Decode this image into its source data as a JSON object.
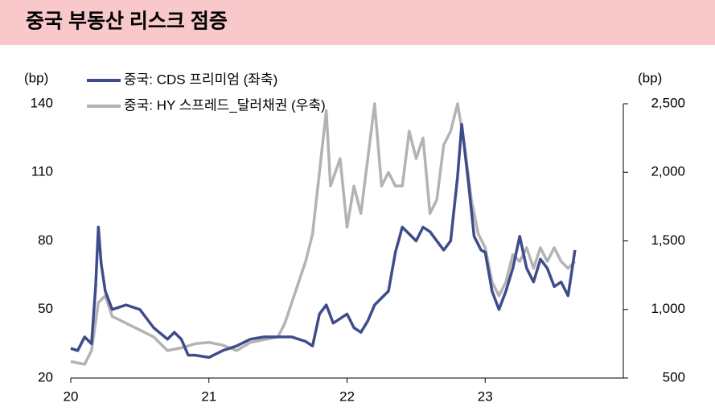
{
  "chart_data": {
    "type": "line",
    "title": "중국 부동산 리스크 점증",
    "y_label": "(bp)",
    "y2_label": "(bp)",
    "xlim": [
      20,
      24
    ],
    "xticks": [
      {
        "value": 20,
        "label": "20"
      },
      {
        "value": 21,
        "label": "21"
      },
      {
        "value": 22,
        "label": "22"
      },
      {
        "value": 23,
        "label": "23"
      }
    ],
    "ylim": [
      20,
      140
    ],
    "yticks": [
      20,
      50,
      80,
      110,
      140
    ],
    "y2lim": [
      500,
      2500
    ],
    "y2ticks": [
      500,
      {
        "value": 1000,
        "label": "1,000"
      },
      {
        "value": 1500,
        "label": "1,500"
      },
      {
        "value": 2000,
        "label": "2,000"
      },
      {
        "value": 2500,
        "label": "2,500"
      }
    ],
    "legend": "top-left",
    "series": [
      {
        "name": "중국: CDS 프리미엄 (좌축)",
        "color": "#3f4c8c",
        "x": [
          20.0,
          20.05,
          20.1,
          20.15,
          20.18,
          20.2,
          20.22,
          20.25,
          20.3,
          20.4,
          20.5,
          20.6,
          20.7,
          20.75,
          20.8,
          20.85,
          20.9,
          21.0,
          21.1,
          21.2,
          21.3,
          21.4,
          21.5,
          21.6,
          21.7,
          21.75,
          21.8,
          21.85,
          21.9,
          22.0,
          22.05,
          22.1,
          22.15,
          22.2,
          22.3,
          22.35,
          22.4,
          22.5,
          22.55,
          22.6,
          22.65,
          22.7,
          22.75,
          22.8,
          22.83,
          22.88,
          22.92,
          22.97,
          23.0,
          23.05,
          23.1,
          23.15,
          23.2,
          23.25,
          23.3,
          23.35,
          23.4,
          23.45,
          23.5,
          23.55,
          23.6,
          23.65
        ],
        "values": [
          33,
          32,
          38,
          35,
          60,
          86,
          70,
          58,
          50,
          52,
          50,
          42,
          37,
          40,
          37,
          30,
          30,
          29,
          32,
          34,
          37,
          38,
          38,
          38,
          36,
          34,
          48,
          52,
          44,
          48,
          42,
          40,
          45,
          52,
          58,
          75,
          86,
          80,
          86,
          84,
          80,
          76,
          80,
          108,
          131,
          105,
          82,
          76,
          75,
          58,
          50,
          58,
          68,
          82,
          68,
          62,
          72,
          68,
          60,
          62,
          56,
          76
        ]
      },
      {
        "name": "중국: HY 스프레드_달러채권  (우축)",
        "color": "#b3b3b3",
        "axis": "y2",
        "x": [
          20.0,
          20.1,
          20.15,
          20.2,
          20.25,
          20.3,
          20.4,
          20.5,
          20.6,
          20.7,
          20.8,
          20.9,
          21.0,
          21.1,
          21.2,
          21.3,
          21.4,
          21.5,
          21.55,
          21.6,
          21.65,
          21.7,
          21.75,
          21.8,
          21.85,
          21.88,
          21.95,
          22.0,
          22.05,
          22.1,
          22.15,
          22.2,
          22.25,
          22.3,
          22.35,
          22.4,
          22.45,
          22.5,
          22.55,
          22.6,
          22.65,
          22.7,
          22.75,
          22.8,
          22.85,
          22.9,
          22.95,
          23.0,
          23.05,
          23.1,
          23.15,
          23.2,
          23.25,
          23.3,
          23.35,
          23.4,
          23.45,
          23.5,
          23.55,
          23.6,
          23.65
        ],
        "values": [
          620,
          600,
          700,
          1050,
          1100,
          950,
          900,
          850,
          800,
          700,
          720,
          750,
          760,
          740,
          700,
          760,
          780,
          800,
          900,
          1050,
          1200,
          1350,
          1550,
          2000,
          2450,
          1900,
          2100,
          1600,
          1900,
          1700,
          2100,
          2500,
          1900,
          2000,
          1900,
          1900,
          2300,
          2100,
          2250,
          1700,
          1800,
          2200,
          2300,
          2500,
          2200,
          1800,
          1550,
          1450,
          1200,
          1100,
          1200,
          1400,
          1350,
          1450,
          1300,
          1450,
          1350,
          1450,
          1350,
          1300,
          1350
        ]
      }
    ]
  }
}
